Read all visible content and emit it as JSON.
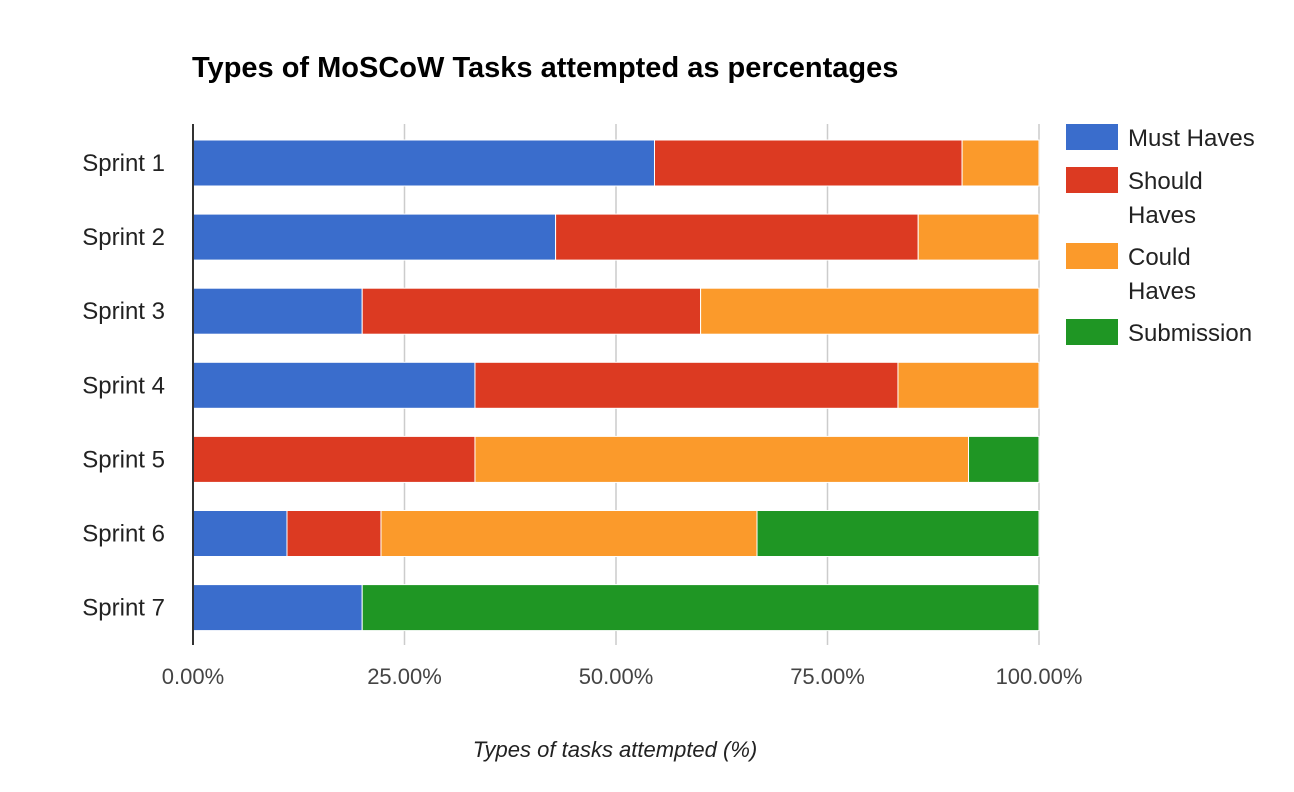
{
  "chart_data": {
    "type": "bar",
    "orientation": "horizontal",
    "stacked": true,
    "title": "Types of MoSCoW Tasks attempted as percentages",
    "xlabel": "Types of tasks attempted (%)",
    "ylabel": "",
    "categories": [
      "Sprint 1",
      "Sprint 2",
      "Sprint 3",
      "Sprint 4",
      "Sprint 5",
      "Sprint 6",
      "Sprint 7"
    ],
    "xlim": [
      0,
      100
    ],
    "ticks": [
      0,
      25,
      50,
      75,
      100
    ],
    "tick_labels": [
      "0.00%",
      "25.00%",
      "50.00%",
      "75.00%",
      "100.00%"
    ],
    "grid": true,
    "legend_position": "right",
    "series": [
      {
        "name": "Must Haves",
        "color": "#3a6dcc",
        "values": [
          54.55,
          42.86,
          20.0,
          33.33,
          0.0,
          11.11,
          20.0
        ]
      },
      {
        "name": "Should Haves",
        "color": "#dc3a22",
        "values": [
          36.36,
          42.86,
          40.0,
          50.0,
          33.33,
          11.11,
          0.0
        ]
      },
      {
        "name": "Could Haves",
        "color": "#fb9a2b",
        "values": [
          9.09,
          14.28,
          40.0,
          16.67,
          58.34,
          44.45,
          0.0
        ]
      },
      {
        "name": "Submission",
        "color": "#1f9624",
        "values": [
          0.0,
          0.0,
          0.0,
          0.0,
          8.33,
          33.33,
          80.0
        ]
      }
    ],
    "legend_lines": [
      [
        "Must Haves"
      ],
      [
        "Should",
        "Haves"
      ],
      [
        "Could",
        "Haves"
      ],
      [
        "Submission"
      ]
    ]
  }
}
